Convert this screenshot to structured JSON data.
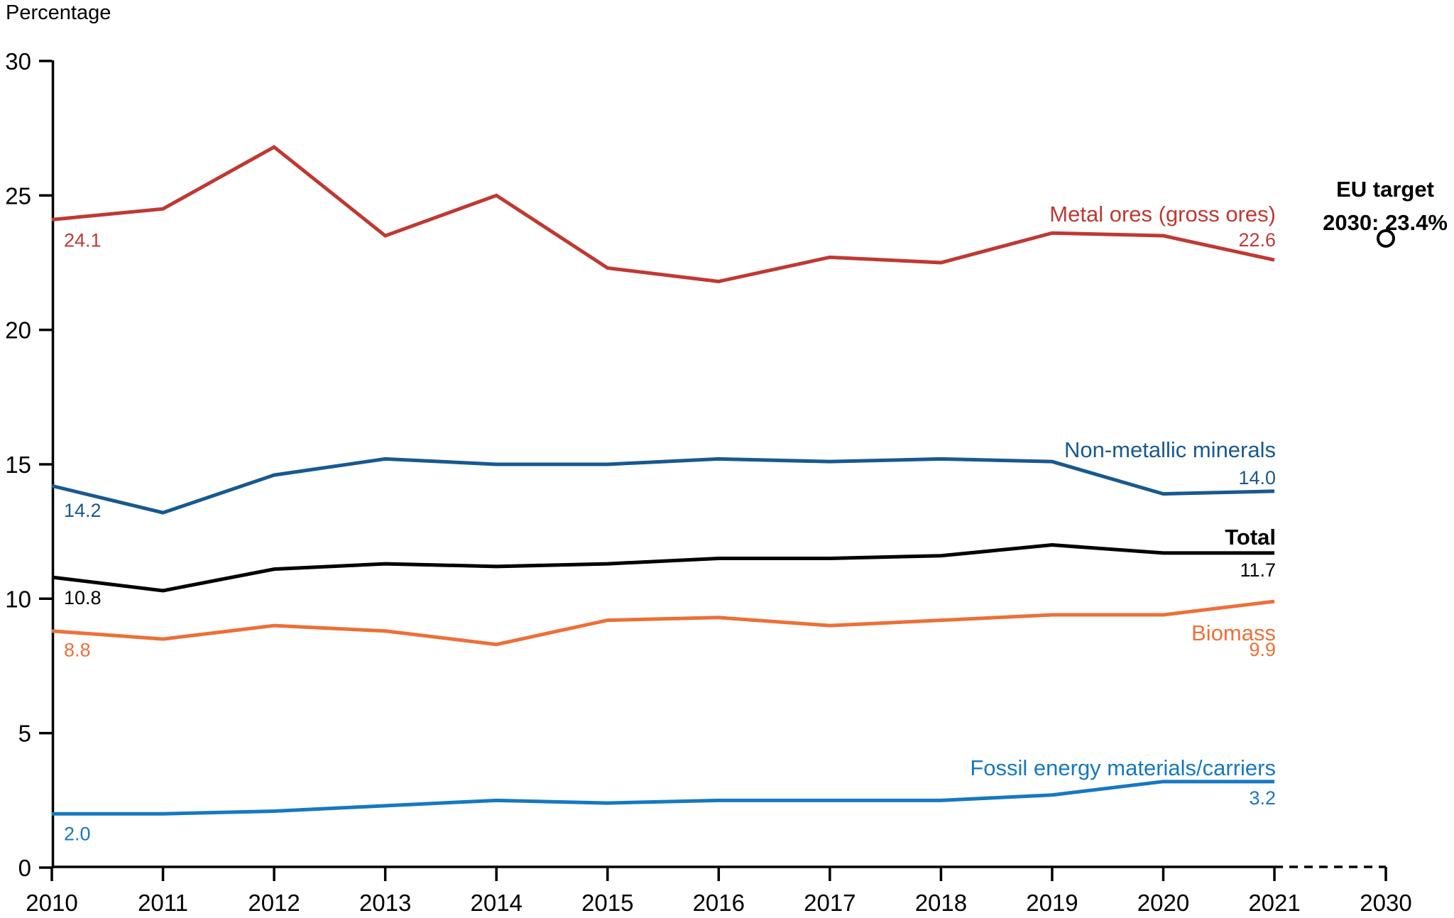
{
  "chart_data": {
    "type": "line",
    "ylabel": "Percentage",
    "x": [
      2010,
      2011,
      2012,
      2013,
      2014,
      2015,
      2016,
      2017,
      2018,
      2019,
      2020,
      2021
    ],
    "ylim": [
      0,
      30
    ],
    "yticks": [
      0,
      5,
      10,
      15,
      20,
      25,
      30
    ],
    "xtick_labels": [
      "2010",
      "2011",
      "2012",
      "2013",
      "2014",
      "2015",
      "2016",
      "2017",
      "2018",
      "2019",
      "2020",
      "2021",
      "2030"
    ],
    "grid": false,
    "legend_position": "direct line labels at right end",
    "series": [
      {
        "name": "Metal ores (gross ores)",
        "color": "#bf3932",
        "values": [
          24.1,
          24.5,
          26.8,
          23.5,
          25.0,
          22.3,
          21.8,
          22.7,
          22.5,
          23.6,
          23.5,
          22.6
        ],
        "start_label": "24.1",
        "end_label": "22.6"
      },
      {
        "name": "Non-metallic minerals",
        "color": "#18598f",
        "values": [
          14.2,
          13.2,
          14.6,
          15.2,
          15.0,
          15.0,
          15.2,
          15.1,
          15.2,
          15.1,
          13.9,
          14.0
        ],
        "start_label": "14.2",
        "end_label": "14.0"
      },
      {
        "name": "Total",
        "color": "#000000",
        "values": [
          10.8,
          10.3,
          11.1,
          11.3,
          11.2,
          11.3,
          11.5,
          11.5,
          11.6,
          12.0,
          11.7,
          11.7
        ],
        "start_label": "10.8",
        "end_label": "11.7"
      },
      {
        "name": "Biomass",
        "color": "#ed6f39",
        "values": [
          8.8,
          8.5,
          9.0,
          8.8,
          8.3,
          9.2,
          9.3,
          9.0,
          9.2,
          9.4,
          9.4,
          9.9
        ],
        "start_label": "8.8",
        "end_label": "9.9"
      },
      {
        "name": "Fossil energy materials/carriers",
        "color": "#1678c2",
        "values": [
          2.0,
          2.0,
          2.1,
          2.3,
          2.5,
          2.4,
          2.5,
          2.5,
          2.5,
          2.7,
          3.2,
          3.2
        ],
        "start_label": "2.0",
        "end_label": "3.2"
      }
    ],
    "eu_target": {
      "line1": "EU target",
      "line2": "2030: 23.4%",
      "year": 2030,
      "value": 23.4
    }
  }
}
